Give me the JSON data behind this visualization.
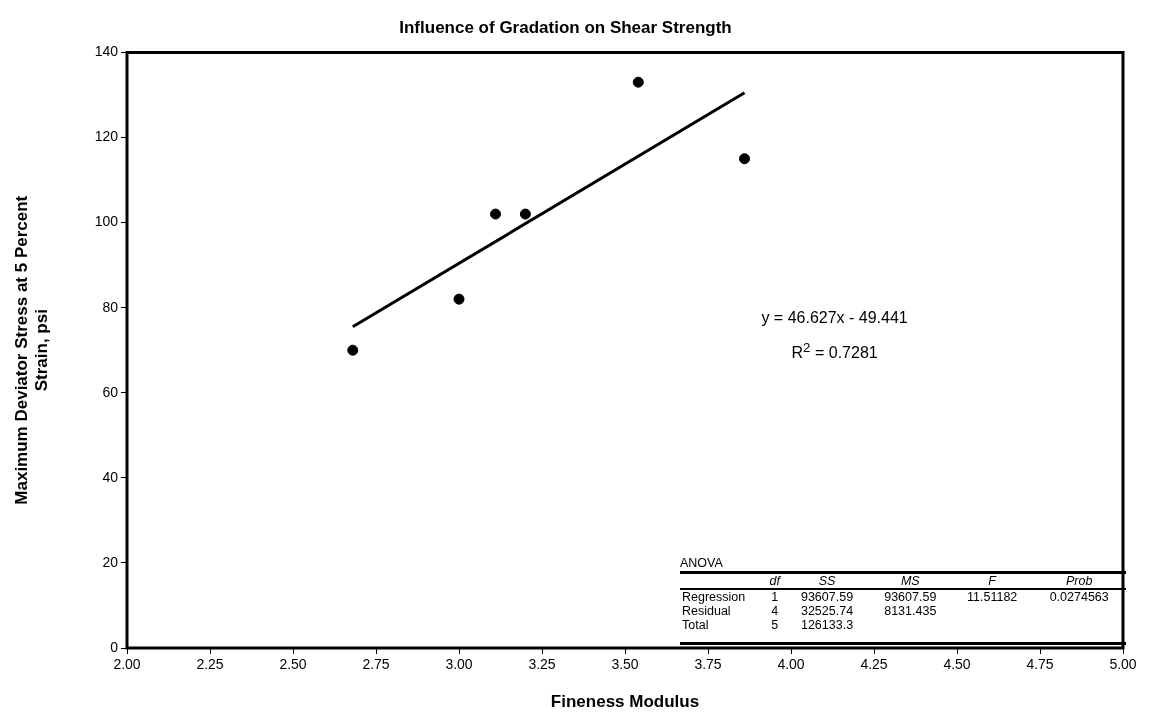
{
  "chart_data": {
    "type": "scatter",
    "title": "Influence of Gradation on Shear Strength",
    "xlabel": "Fineness Modulus",
    "ylabel": "Maximum Deviator Stress at 5 Percent Strain, psi",
    "x": [
      2.68,
      3.0,
      3.11,
      3.2,
      3.54,
      3.86
    ],
    "series": [
      {
        "color": "#000000",
        "values": [
          70,
          82,
          102,
          102,
          133,
          115
        ]
      },
      {
        "type": "line",
        "marker": "none",
        "color": "#000000",
        "x": [
          2.68,
          3.86
        ],
        "values": [
          75.5,
          130.5
        ]
      }
    ],
    "xlim": [
      2.0,
      5.0
    ],
    "xticks": [
      {
        "value": 2,
        "label": "2.00"
      },
      {
        "value": 2.25,
        "label": "2.25"
      },
      {
        "value": 2.5,
        "label": "2.50"
      },
      {
        "value": 2.75,
        "label": "2.75"
      },
      {
        "value": 3,
        "label": "3.00"
      },
      {
        "value": 3.25,
        "label": "3.25"
      },
      {
        "value": 3.5,
        "label": "3.50"
      },
      {
        "value": 3.75,
        "label": "3.75"
      },
      {
        "value": 4,
        "label": "4.00"
      },
      {
        "value": 4.25,
        "label": "4.25"
      },
      {
        "value": 4.5,
        "label": "4.50"
      },
      {
        "value": 4.75,
        "label": "4.75"
      },
      {
        "value": 5,
        "label": "5.00"
      }
    ],
    "ylim": [
      0,
      140
    ],
    "yticks": [
      0,
      20,
      40,
      60,
      80,
      100,
      120,
      140
    ],
    "grid": false,
    "legend": false,
    "marker": "circle",
    "line_style": "solid",
    "annotations": [
      "y = 46.627x - 49.441",
      "R$^{2}$ = 0.7281",
      "ANOVA",
      "\tdf\tSS\tMS\tF\tProb",
      "Regression\t1\t93607.59\t93607.59\t11.51182\t0.0274563",
      "Residual\t4\t32525.74\t8131.435",
      "Total\t5\t126133.3"
    ]
  }
}
